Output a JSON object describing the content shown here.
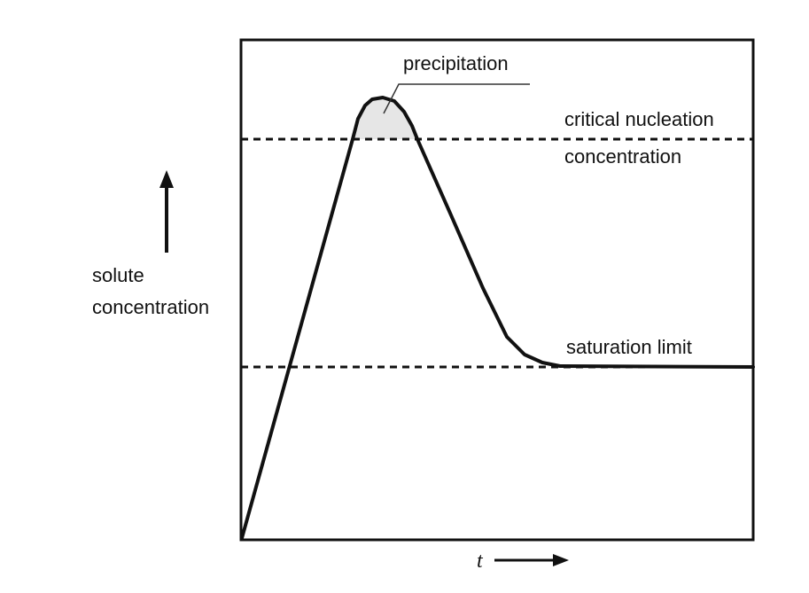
{
  "diagram": {
    "labels": {
      "y_axis_line1": "solute",
      "y_axis_line2": "concentration",
      "x_axis": "t",
      "precipitation": "precipitation",
      "critical_line1": "critical nucleation",
      "critical_line2": "concentration",
      "saturation": "saturation limit"
    },
    "colors": {
      "line": "#111111",
      "precipitation_fill": "#e6e6e6"
    }
  }
}
